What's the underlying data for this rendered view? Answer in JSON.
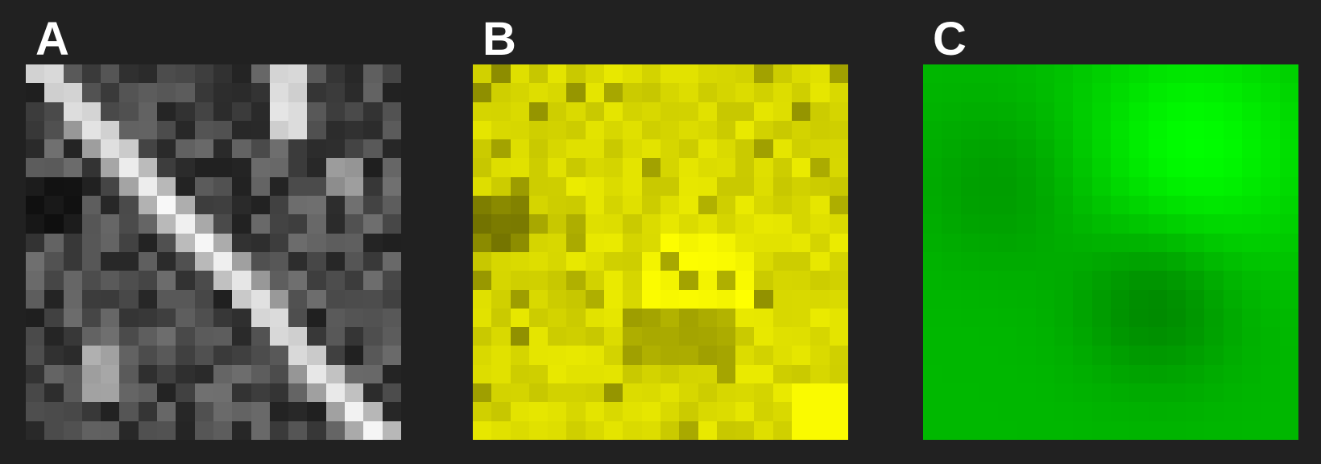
{
  "panels": [
    {
      "label": "A",
      "color": "#ffffff"
    },
    {
      "label": "B",
      "color": "#ffff00"
    },
    {
      "label": "C",
      "color": "#00ff00"
    }
  ]
}
